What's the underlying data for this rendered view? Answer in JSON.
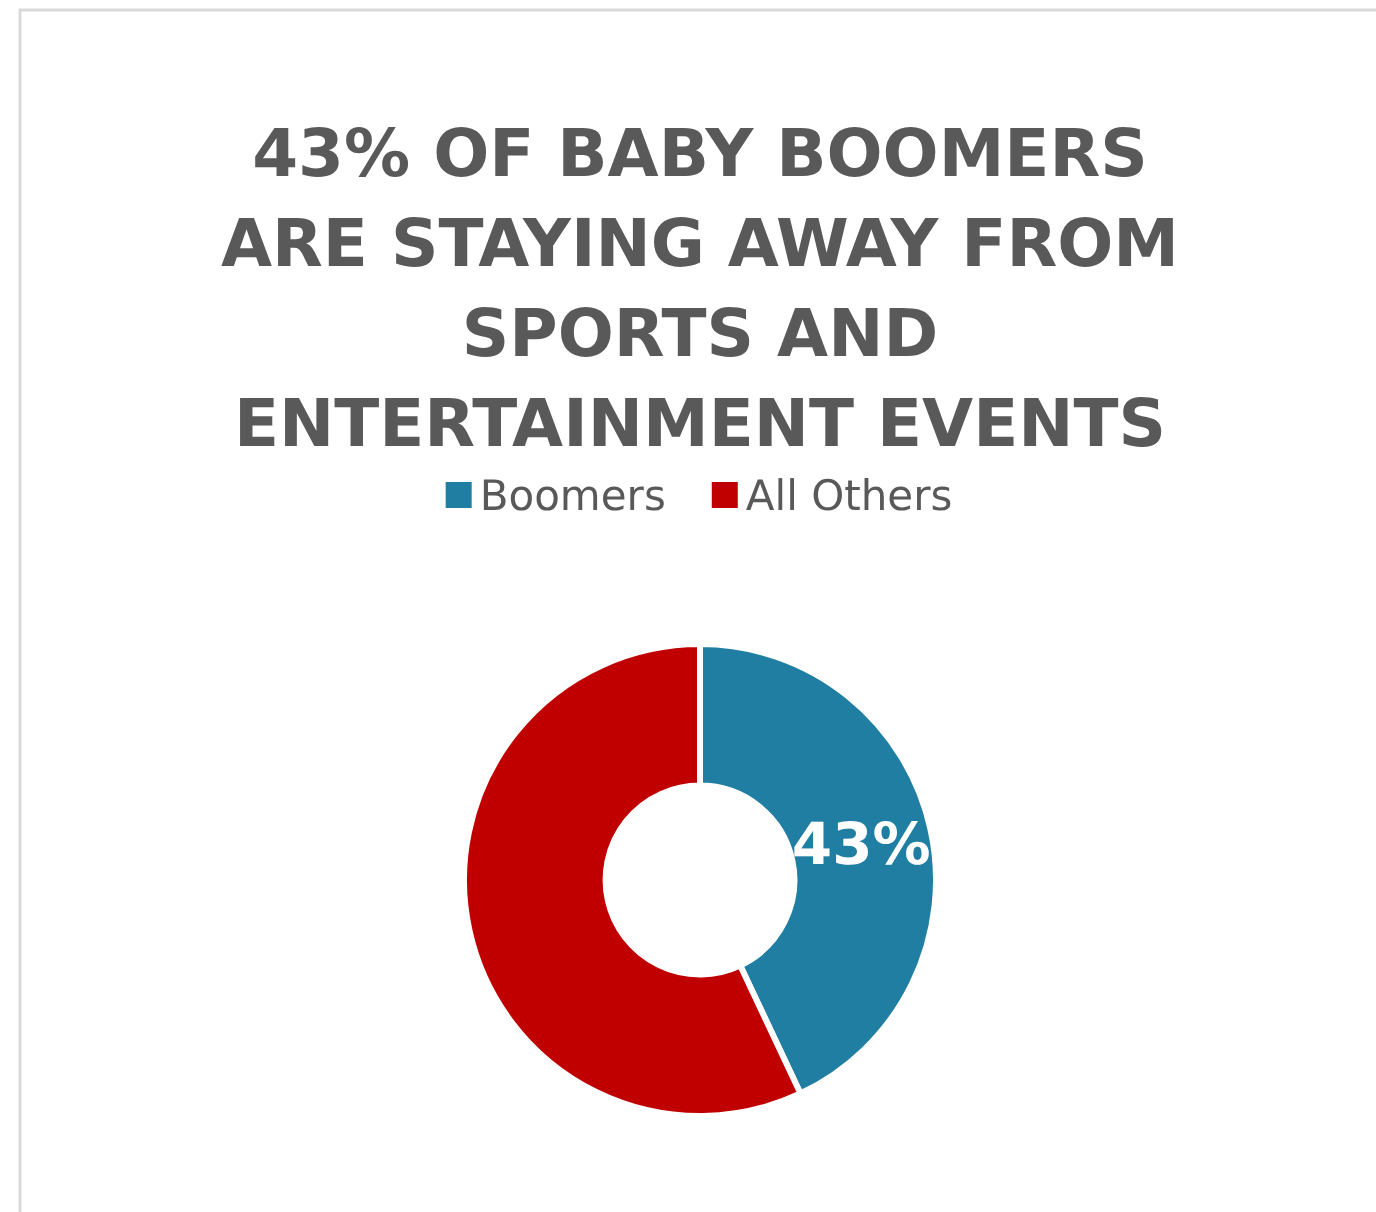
{
  "chart_data": {
    "type": "donut",
    "title": "43% OF BABY BOOMERS ARE STAYING AWAY FROM SPORTS AND ENTERTAINMENT EVENTS",
    "categories": [
      "Boomers",
      "All Others"
    ],
    "values": [
      43,
      57
    ],
    "colors": [
      "#1f7ea1",
      "#c00000"
    ],
    "value_labels": [
      "43%",
      null
    ],
    "legend": "top"
  }
}
